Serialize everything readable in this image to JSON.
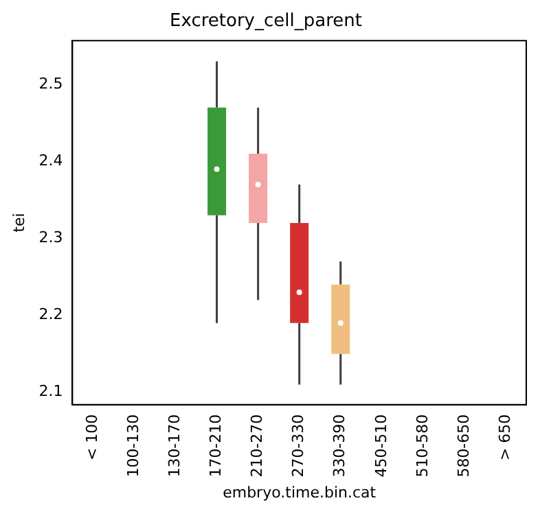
{
  "chart_data": {
    "type": "box",
    "title": "Excretory_cell_parent",
    "xlabel": "embryo.time.bin.cat",
    "ylabel": "tei",
    "categories": [
      "< 100",
      "100-130",
      "130-170",
      "170-210",
      "210-270",
      "270-330",
      "330-390",
      "450-510",
      "510-580",
      "580-650",
      "> 650"
    ],
    "boxes": [
      null,
      null,
      null,
      {
        "low": 2.19,
        "q1": 2.33,
        "median": 2.39,
        "q3": 2.47,
        "high": 2.53
      },
      {
        "low": 2.22,
        "q1": 2.32,
        "median": 2.37,
        "q3": 2.41,
        "high": 2.47
      },
      {
        "low": 2.11,
        "q1": 2.19,
        "median": 2.23,
        "q3": 2.32,
        "high": 2.37
      },
      {
        "low": 2.11,
        "q1": 2.15,
        "median": 2.19,
        "q3": 2.24,
        "high": 2.27
      },
      null,
      null,
      null,
      null
    ],
    "colors": [
      null,
      null,
      null,
      "#3a9a3a",
      "#f4a5a5",
      "#d62f2f",
      "#f0bf80",
      null,
      null,
      null,
      null
    ],
    "ylim": [
      2.084,
      2.557
    ],
    "yticks": [
      2.1,
      2.2,
      2.3,
      2.4,
      2.5
    ],
    "grid": false,
    "legend": false
  }
}
